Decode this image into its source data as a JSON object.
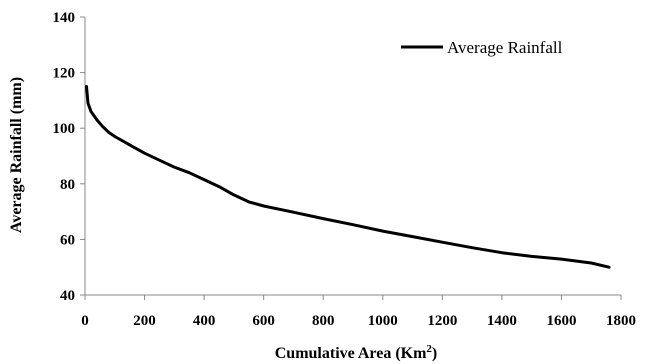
{
  "chart_data": {
    "type": "line",
    "title": "",
    "xlabel": {
      "main": "Cumulative Area (Km",
      "sup": "2",
      "tail": ")"
    },
    "ylabel": "Average Rainfall  (mm)",
    "xlim": [
      0,
      1800
    ],
    "ylim": [
      40,
      140
    ],
    "xticks": [
      0,
      200,
      400,
      600,
      800,
      1000,
      1200,
      1400,
      1600,
      1800
    ],
    "yticks": [
      40,
      60,
      80,
      100,
      120,
      140
    ],
    "grid": false,
    "legend_position": "top-right",
    "series": [
      {
        "name": "Average Rainfall",
        "color": "#000000",
        "points": [
          [
            5,
            115
          ],
          [
            10,
            109
          ],
          [
            20,
            106
          ],
          [
            40,
            103
          ],
          [
            60,
            100.5
          ],
          [
            80,
            98.5
          ],
          [
            100,
            97
          ],
          [
            150,
            94
          ],
          [
            200,
            91
          ],
          [
            250,
            88.5
          ],
          [
            300,
            86
          ],
          [
            350,
            84
          ],
          [
            400,
            81.5
          ],
          [
            450,
            79
          ],
          [
            500,
            76
          ],
          [
            550,
            73.5
          ],
          [
            600,
            72
          ],
          [
            700,
            69.8
          ],
          [
            800,
            67.5
          ],
          [
            900,
            65.3
          ],
          [
            1000,
            63
          ],
          [
            1100,
            61
          ],
          [
            1200,
            59
          ],
          [
            1300,
            57
          ],
          [
            1400,
            55.2
          ],
          [
            1500,
            53.9
          ],
          [
            1600,
            52.9
          ],
          [
            1700,
            51.5
          ],
          [
            1760,
            50
          ]
        ]
      }
    ]
  }
}
